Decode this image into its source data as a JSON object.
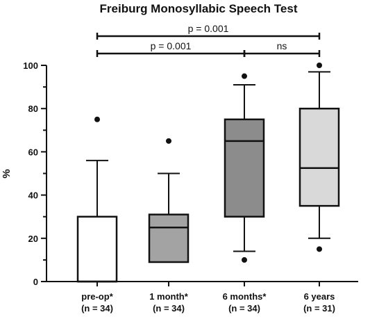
{
  "chart_data": {
    "type": "box",
    "title": "Freiburg Monosyllabic Speech Test",
    "xlabel": "",
    "ylabel": "%",
    "ylim": [
      0,
      100
    ],
    "yticks": [
      0,
      20,
      40,
      60,
      80,
      100
    ],
    "grid": false,
    "categories": [
      {
        "name": "pre-op*",
        "n_label": "(n = 34)"
      },
      {
        "name": "1 month*",
        "n_label": "(n = 34)"
      },
      {
        "name": "6 months*",
        "n_label": "(n = 34)"
      },
      {
        "name": "6 years",
        "n_label": "(n = 31)"
      }
    ],
    "boxes": [
      {
        "whisker_low": 0,
        "q1": 0,
        "median": 0,
        "q3": 30,
        "whisker_high": 56,
        "outliers": [
          75
        ],
        "fill": "#ffffff"
      },
      {
        "whisker_low": 9,
        "q1": 9,
        "median": 25,
        "q3": 31,
        "whisker_high": 50,
        "outliers": [
          65
        ],
        "fill": "#a3a3a3"
      },
      {
        "whisker_low": 14,
        "q1": 30,
        "median": 65,
        "q3": 75,
        "whisker_high": 91,
        "outliers": [
          10,
          95
        ],
        "fill": "#8c8c8c"
      },
      {
        "whisker_low": 20,
        "q1": 35,
        "median": 52.5,
        "q3": 80,
        "whisker_high": 97,
        "outliers": [
          15,
          100
        ],
        "fill": "#d9d9d9"
      }
    ],
    "significance": [
      {
        "from": 0,
        "to": 3,
        "label": "p = 0.001",
        "level": 2
      },
      {
        "from": 0,
        "to": 2,
        "label": "p = 0.001",
        "level": 1
      },
      {
        "from": 2,
        "to": 3,
        "label": "ns",
        "level": 1
      }
    ]
  }
}
